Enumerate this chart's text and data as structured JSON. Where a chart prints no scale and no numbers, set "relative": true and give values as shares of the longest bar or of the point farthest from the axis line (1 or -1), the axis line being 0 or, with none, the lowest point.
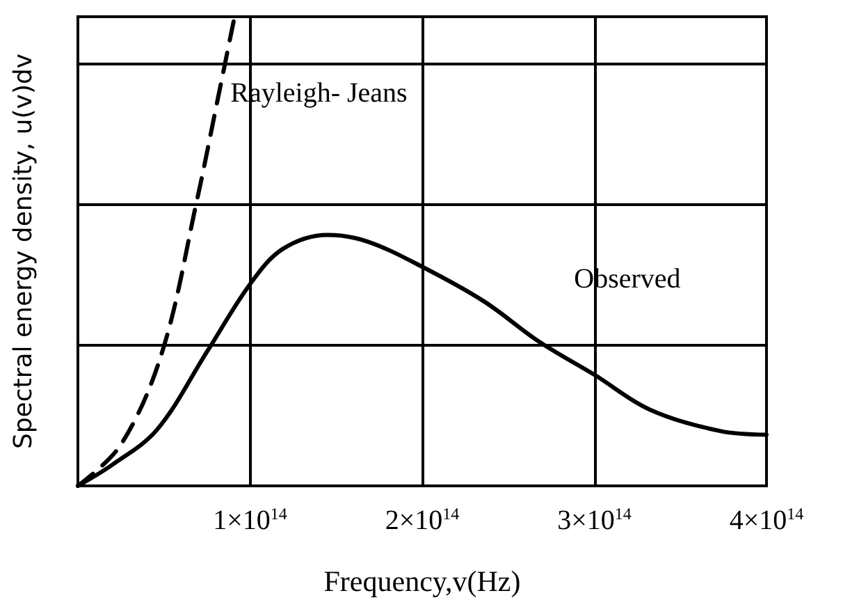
{
  "chart_data": {
    "type": "line",
    "relative": true,
    "xlabel": "Frequency,v(Hz)",
    "ylabel": "Spectral energy density, u(v)dv",
    "xlim": [
      0,
      400000000000000.0
    ],
    "xticks": [
      {
        "value": 100000000000000.0,
        "label": "1×10$^{14}$"
      },
      {
        "value": 200000000000000.0,
        "label": "2×10$^{14}$"
      },
      {
        "value": 300000000000000.0,
        "label": "3×10$^{14}$"
      },
      {
        "value": 400000000000000.0,
        "label": "4×10$^{14}$"
      }
    ],
    "grid": true,
    "legend": false,
    "marker": "none",
    "series": [
      {
        "name": "Rayleigh- Jeans",
        "color": "#000000",
        "line_style": "dashed",
        "x": [
          0,
          25000000000000.0,
          49000000000000.0,
          69000000000000.0,
          81000000000000.0,
          91000000000000.0
        ],
        "values": [
          0,
          0.088,
          0.286,
          0.606,
          0.82,
          1.0
        ]
      },
      {
        "name": "Observed",
        "color": "#000000",
        "line_style": "solid",
        "x": [
          0,
          20000000000000.0,
          46000000000000.0,
          75000000000000.0,
          100000000000000.0,
          119000000000000.0,
          145000000000000.0,
          168000000000000.0,
          200000000000000.0,
          236000000000000.0,
          268000000000000.0,
          300000000000000.0,
          332000000000000.0,
          373000000000000.0,
          400000000000000.0
        ],
        "values": [
          0,
          0.045,
          0.12,
          0.286,
          0.43,
          0.505,
          0.535,
          0.521,
          0.467,
          0.393,
          0.307,
          0.237,
          0.163,
          0.117,
          0.109
        ]
      }
    ]
  }
}
